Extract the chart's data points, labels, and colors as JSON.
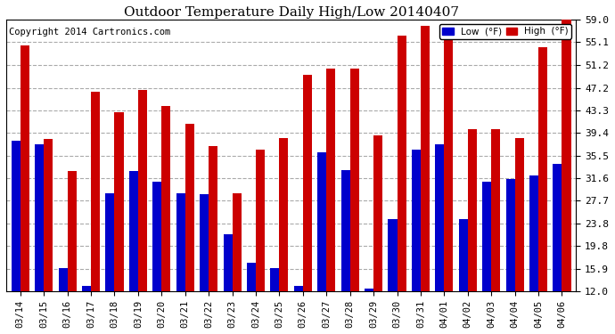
{
  "title": "Outdoor Temperature Daily High/Low 20140407",
  "copyright": "Copyright 2014 Cartronics.com",
  "legend_low": "Low  (°F)",
  "legend_high": "High  (°F)",
  "dates": [
    "03/14",
    "03/15",
    "03/16",
    "03/17",
    "03/18",
    "03/19",
    "03/20",
    "03/21",
    "03/22",
    "03/23",
    "03/24",
    "03/25",
    "03/26",
    "03/27",
    "03/28",
    "03/29",
    "03/30",
    "03/31",
    "04/01",
    "04/02",
    "04/03",
    "04/04",
    "04/05",
    "04/06"
  ],
  "highs": [
    54.5,
    38.3,
    32.8,
    46.5,
    43.0,
    46.9,
    44.0,
    41.0,
    37.1,
    29.0,
    36.5,
    38.5,
    49.5,
    50.5,
    50.5,
    39.0,
    56.2,
    58.0,
    56.3,
    40.0,
    40.0,
    38.5,
    54.2,
    59.0
  ],
  "lows": [
    38.0,
    37.5,
    16.0,
    13.0,
    29.0,
    32.8,
    31.0,
    29.0,
    28.8,
    21.9,
    17.0,
    16.0,
    13.0,
    36.0,
    33.0,
    12.5,
    24.5,
    36.5,
    37.5,
    24.5,
    31.0,
    31.5,
    32.0,
    34.0
  ],
  "yticks": [
    12.0,
    15.9,
    19.8,
    23.8,
    27.7,
    31.6,
    35.5,
    39.4,
    43.3,
    47.2,
    51.2,
    55.1,
    59.0
  ],
  "ymin": 12.0,
  "ymax": 59.0,
  "bar_color_low": "#0000cc",
  "bar_color_high": "#cc0000",
  "bg_color": "#ffffff",
  "grid_color": "#aaaaaa",
  "title_fontsize": 11,
  "copyright_fontsize": 7.5
}
